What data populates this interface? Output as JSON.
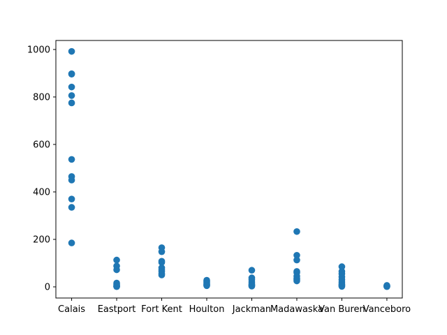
{
  "chart_data": {
    "type": "scatter",
    "title": "",
    "xlabel": "",
    "ylabel": "",
    "categories": [
      "Calais",
      "Eastport",
      "Fort Kent",
      "Houlton",
      "Jackman",
      "Madawaska",
      "Van Buren",
      "Vanceboro"
    ],
    "ylim": [
      -47,
      1038
    ],
    "yticks": [
      0,
      200,
      400,
      600,
      800,
      1000
    ],
    "grid": false,
    "marker_color": "#1f77b4",
    "points": {
      "Calais": [
        992,
        898,
        896,
        842,
        806,
        775,
        537,
        465,
        450,
        370,
        335,
        185
      ],
      "Eastport": [
        113,
        88,
        72,
        16,
        10,
        5,
        3,
        2,
        1
      ],
      "Fort Kent": [
        165,
        148,
        108,
        103,
        80,
        72,
        65,
        55,
        50
      ],
      "Houlton": [
        28,
        24,
        20,
        15,
        10,
        7,
        5
      ],
      "Jackman": [
        70,
        38,
        30,
        20,
        12,
        8,
        5,
        3
      ],
      "Madawaska": [
        233,
        133,
        113,
        65,
        60,
        45,
        35,
        30,
        25
      ],
      "Van Buren": [
        85,
        65,
        55,
        42,
        30,
        20,
        12,
        8,
        5,
        2
      ],
      "Vanceboro": [
        6,
        4,
        3,
        2,
        1
      ]
    }
  }
}
